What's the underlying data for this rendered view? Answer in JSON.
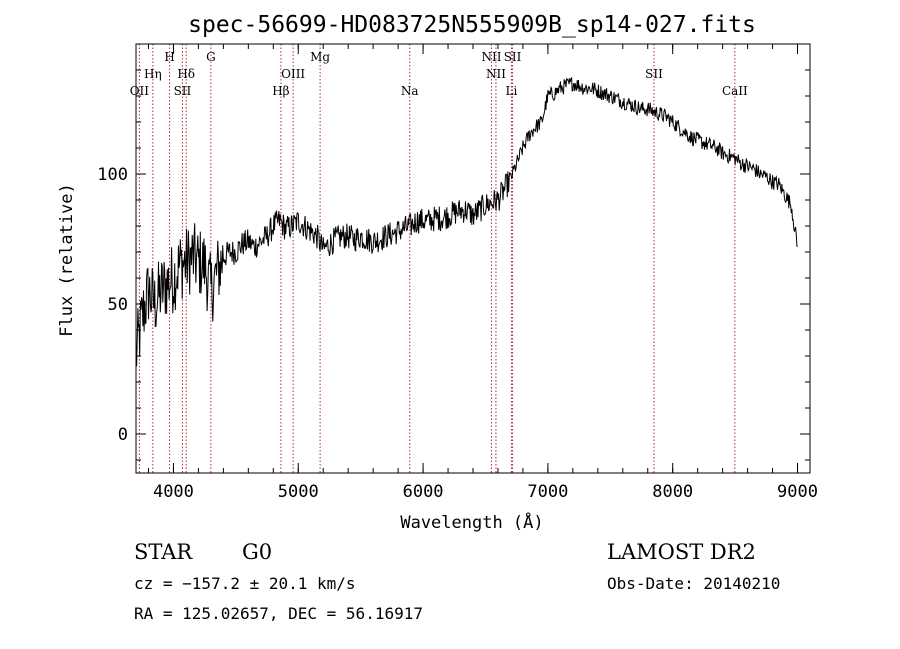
{
  "chart_data": {
    "type": "line",
    "title": "spec-56699-HD083725N555909B_sp14-027.fits",
    "xlabel": "Wavelength (Å)",
    "ylabel": "Flux (relative)",
    "xlim": [
      3700,
      9100
    ],
    "ylim": [
      -15,
      150
    ],
    "xticks": [
      4000,
      5000,
      6000,
      7000,
      8000,
      9000
    ],
    "yticks": [
      0,
      50,
      100
    ],
    "grid": false,
    "legend": "none",
    "line_color": "#000000",
    "marker_line_color": "#b03030",
    "series": [
      {
        "x": [
          3700,
          3750,
          3800,
          3850,
          3900,
          3950,
          4000,
          4050,
          4100,
          4150,
          4200,
          4250,
          4300,
          4350,
          4400,
          4450,
          4500,
          4550,
          4600,
          4650,
          4700,
          4750,
          4800,
          4850,
          4900,
          4950,
          5000,
          5050,
          5100,
          5150,
          5200,
          5250,
          5300,
          5350,
          5400,
          5450,
          5500,
          5550,
          5600,
          5650,
          5700,
          5750,
          5800,
          5850,
          5900,
          5950,
          6000,
          6050,
          6100,
          6150,
          6200,
          6250,
          6300,
          6350,
          6400,
          6450,
          6500,
          6550,
          6600,
          6650,
          6700,
          6750,
          6800,
          6850,
          6900,
          6950,
          7000,
          7050,
          7100,
          7150,
          7200,
          7250,
          7300,
          7350,
          7400,
          7450,
          7500,
          7550,
          7600,
          7650,
          7700,
          7750,
          7800,
          7850,
          7900,
          7950,
          8000,
          8050,
          8100,
          8150,
          8200,
          8250,
          8300,
          8350,
          8400,
          8450,
          8500,
          8550,
          8600,
          8650,
          8700,
          8750,
          8800,
          8850,
          8900,
          8950,
          9000
        ],
        "y": [
          30,
          45,
          55,
          50,
          55,
          58,
          60,
          65,
          66,
          68,
          66,
          65,
          55,
          62,
          68,
          70,
          70,
          73,
          74,
          72,
          74,
          76,
          80,
          82,
          79,
          80,
          82,
          80,
          78,
          76,
          71,
          73,
          75,
          76,
          76,
          75,
          76,
          75,
          74,
          75,
          76,
          77,
          78,
          79,
          80,
          82,
          82,
          82,
          83,
          83,
          84,
          85,
          86,
          86,
          84,
          86,
          88,
          89,
          90,
          94,
          98,
          104,
          110,
          115,
          118,
          120,
          130,
          131,
          133,
          134,
          135,
          134,
          133,
          133,
          132,
          131,
          130,
          129,
          128,
          127,
          126,
          125,
          125,
          124,
          123,
          122,
          120,
          118,
          116,
          114,
          113,
          112,
          111,
          110,
          108,
          107,
          106,
          104,
          103,
          102,
          100,
          99,
          97,
          96,
          92,
          88,
          72
        ]
      }
    ],
    "annotations": [
      {
        "label": "OII",
        "x": 3727
      },
      {
        "label": "Hη",
        "x": 3835
      },
      {
        "label": "H",
        "x": 3969
      },
      {
        "label": "SII",
        "x": 4072
      },
      {
        "label": "Hδ",
        "x": 4102
      },
      {
        "label": "G",
        "x": 4300
      },
      {
        "label": "Hβ",
        "x": 4861
      },
      {
        "label": "OIII",
        "x": 4959
      },
      {
        "label": "Mg",
        "x": 5175
      },
      {
        "label": "Na",
        "x": 5893
      },
      {
        "label": "NII",
        "x": 6548
      },
      {
        "label": "NII",
        "x": 6584
      },
      {
        "label": "SII",
        "x": 6717
      },
      {
        "label": "Li",
        "x": 6708
      },
      {
        "label": "SII",
        "x": 7850
      },
      {
        "label": "CaII",
        "x": 8498
      }
    ]
  },
  "info": {
    "object_type": "STAR",
    "subclass": "G0",
    "survey": "LAMOST DR2",
    "cz_line": "cz = −157.2 ± 20.1 km/s",
    "obs_date": "Obs-Date: 20140210",
    "coords": "RA = 125.02657, DEC =  56.16917"
  }
}
